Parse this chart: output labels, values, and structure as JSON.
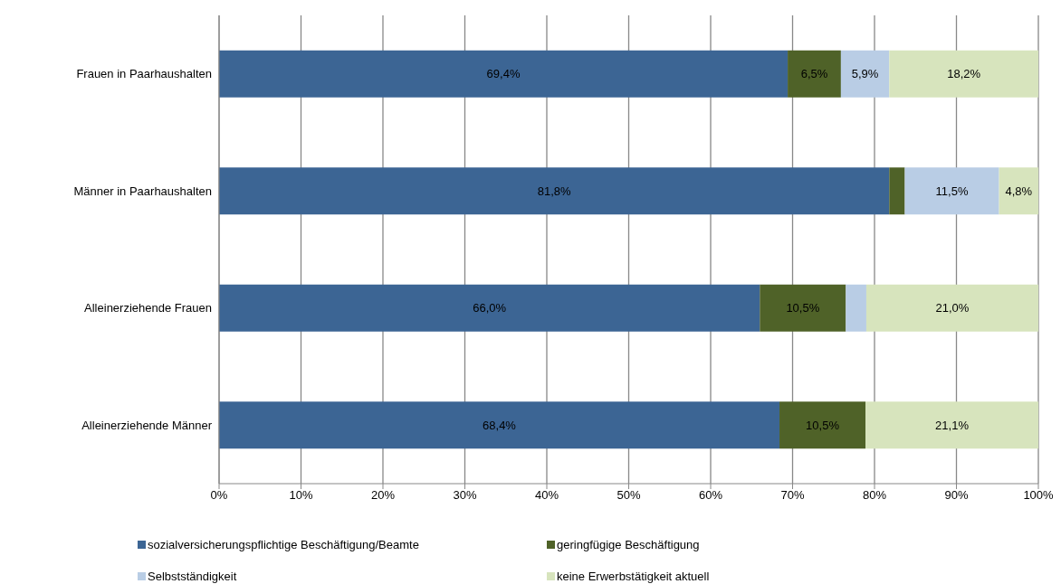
{
  "chart_data": {
    "type": "bar",
    "orientation": "horizontal",
    "stacked": true,
    "categories": [
      "Frauen in Paarhaushalten",
      "Männer in Paarhaushalten",
      "Alleinerziehende Frauen",
      "Alleinerziehende Männer"
    ],
    "series": [
      {
        "name": "sozialversicherungspflichtige Beschäftigung/Beamte",
        "color": "#3c6594",
        "values": [
          69.4,
          81.8,
          66.0,
          68.4
        ],
        "value_labels": [
          "69,4%",
          "81,8%",
          "66,0%",
          "68,4%"
        ]
      },
      {
        "name": "geringfügige Beschäftigung",
        "color": "#4f6228",
        "values": [
          6.5,
          1.9,
          10.5,
          10.5
        ],
        "value_labels": [
          "6,5%",
          null,
          "10,5%",
          "10,5%"
        ]
      },
      {
        "name": "Selbstständigkeit",
        "color": "#b9cde5",
        "values": [
          5.9,
          11.5,
          2.5,
          null
        ],
        "value_labels": [
          "5,9%",
          "11,5%",
          null,
          null
        ]
      },
      {
        "name": "keine Erwerbstätigkeit aktuell",
        "color": "#d7e4bd",
        "values": [
          18.2,
          4.8,
          21.0,
          21.1
        ],
        "value_labels": [
          "18,2%",
          "4,8%",
          "21,0%",
          "21,1%"
        ]
      }
    ],
    "xlim": [
      0,
      100
    ],
    "xticks": [
      {
        "value": 0,
        "label": "0%"
      },
      {
        "value": 10,
        "label": "10%"
      },
      {
        "value": 20,
        "label": "20%"
      },
      {
        "value": 30,
        "label": "30%"
      },
      {
        "value": 40,
        "label": "40%"
      },
      {
        "value": 50,
        "label": "50%"
      },
      {
        "value": 60,
        "label": "60%"
      },
      {
        "value": 70,
        "label": "70%"
      },
      {
        "value": 80,
        "label": "80%"
      },
      {
        "value": 90,
        "label": "90%"
      },
      {
        "value": 100,
        "label": "100%"
      }
    ],
    "grid": "x",
    "legend": "bottom"
  }
}
